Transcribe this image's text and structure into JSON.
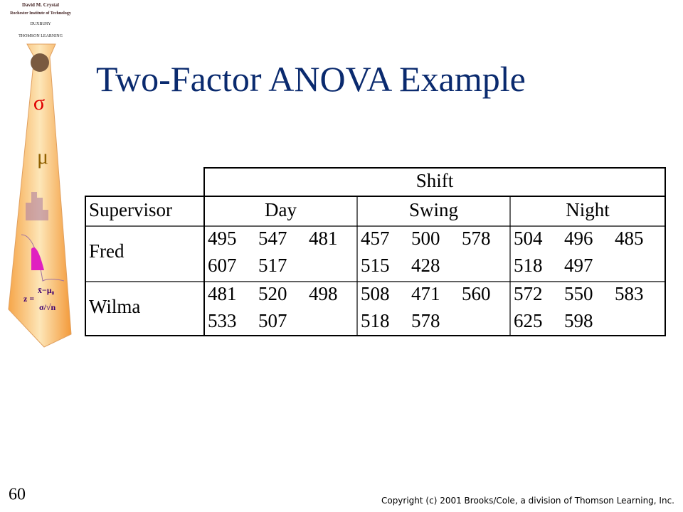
{
  "sidebar": {
    "author": "David M. Crystal",
    "institution": "Rochester Institute of Technology",
    "publisher": "DUXBURY",
    "imprint": "THOMSON LEARNING",
    "symbols": [
      "σ",
      "μ"
    ],
    "formula": {
      "lhs": "z =",
      "numerator": "x̄−μ₀",
      "denominator": "σ/√n"
    }
  },
  "title": "Two-Factor ANOVA Example",
  "table": {
    "group_header": "Shift",
    "columns": [
      "Supervisor",
      "Day",
      "Swing",
      "Night"
    ],
    "rows": [
      {
        "label": "Fred",
        "cells": [
          [
            [
              495,
              547,
              481
            ],
            [
              607,
              517
            ]
          ],
          [
            [
              457,
              500,
              578
            ],
            [
              515,
              428
            ]
          ],
          [
            [
              504,
              496,
              485
            ],
            [
              518,
              497
            ]
          ]
        ]
      },
      {
        "label": "Wilma",
        "cells": [
          [
            [
              481,
              520,
              498
            ],
            [
              533,
              507
            ]
          ],
          [
            [
              508,
              471,
              560
            ],
            [
              518,
              578
            ]
          ],
          [
            [
              572,
              550,
              583
            ],
            [
              625,
              598
            ]
          ]
        ]
      }
    ]
  },
  "page_number": "60",
  "copyright": "Copyright (c) 2001 Brooks/Cole, a division of Thomson Learning, Inc."
}
